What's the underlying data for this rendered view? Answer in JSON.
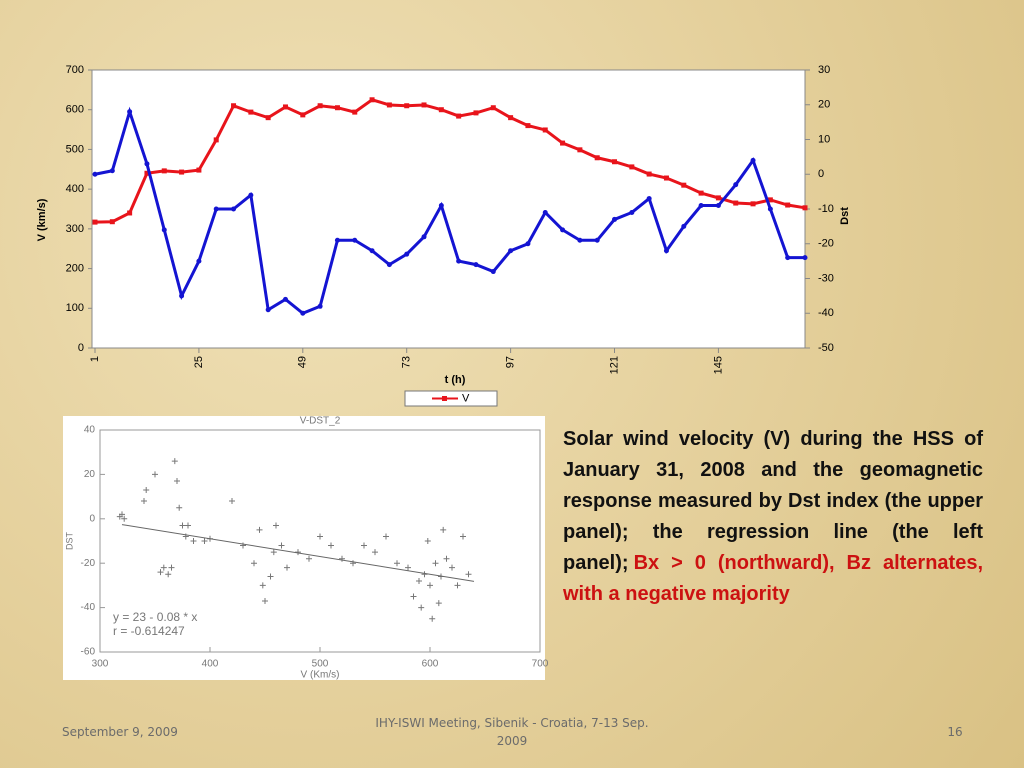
{
  "chart_data": [
    {
      "type": "line",
      "x_label": "t (h)",
      "y_label": "V (km/s)",
      "y2_label": "Dst",
      "x": [
        1,
        5,
        9,
        13,
        17,
        21,
        25,
        29,
        33,
        37,
        41,
        45,
        49,
        53,
        57,
        61,
        65,
        69,
        73,
        77,
        81,
        85,
        89,
        93,
        97,
        101,
        105,
        109,
        113,
        117,
        121,
        125,
        129,
        133,
        137,
        141,
        145,
        149,
        153,
        157,
        161,
        165
      ],
      "xlim": [
        1,
        165
      ],
      "xticks": [
        1,
        25,
        49,
        73,
        97,
        121,
        145
      ],
      "ylim": [
        0,
        700
      ],
      "yticks": [
        0,
        100,
        200,
        300,
        400,
        500,
        600,
        700
      ],
      "y2lim": [
        -50,
        30
      ],
      "y2ticks": [
        -50,
        -40,
        -30,
        -20,
        -10,
        0,
        10,
        20,
        30
      ],
      "legend": "bottom",
      "series": [
        {
          "name": "V",
          "color": "#e8141b",
          "values": [
            317,
            318,
            340,
            440,
            446,
            443,
            448,
            524,
            610,
            594,
            580,
            607,
            587,
            610,
            605,
            594,
            625,
            612,
            610,
            612,
            600,
            584,
            592,
            605,
            580,
            560,
            549,
            516,
            499,
            479,
            469,
            456,
            438,
            428,
            410,
            390,
            378,
            365,
            363,
            373,
            360,
            353
          ]
        },
        {
          "color": "#1414d2",
          "axis": "y2",
          "values": [
            0,
            1,
            18,
            3,
            -16,
            -35,
            -25,
            -10,
            -10,
            -6,
            -39,
            -36,
            -40,
            -38,
            -19,
            -19,
            -22,
            -26,
            -23,
            -18,
            -9,
            -25,
            -26,
            -28,
            -22,
            -20,
            -11,
            -16,
            -19,
            -19,
            -13,
            -11,
            -7,
            -22,
            -15,
            -9,
            -9,
            -3,
            4,
            -10,
            -24,
            -24
          ]
        }
      ]
    },
    {
      "type": "scatter",
      "title": "V-DST_2",
      "x_label": "V (Km/s)",
      "y_label": "DST",
      "annotations": [
        "y = 23 - 0.08 * x",
        "r = -0.614247"
      ],
      "x": [
        320,
        322,
        318,
        340,
        342,
        350,
        355,
        358,
        362,
        365,
        368,
        370,
        372,
        375,
        378,
        380,
        385,
        395,
        400,
        420,
        430,
        440,
        445,
        448,
        450,
        455,
        458,
        460,
        465,
        470,
        480,
        490,
        500,
        510,
        520,
        530,
        540,
        550,
        560,
        570,
        580,
        585,
        590,
        592,
        595,
        598,
        600,
        602,
        605,
        608,
        610,
        612,
        615,
        620,
        625,
        630,
        635
      ],
      "values": [
        2,
        0,
        1,
        8,
        13,
        20,
        -24,
        -22,
        -25,
        -22,
        26,
        17,
        5,
        -3,
        -8,
        -3,
        -10,
        -10,
        -9,
        8,
        -12,
        -20,
        -5,
        -30,
        -37,
        -26,
        -15,
        -3,
        -12,
        -22,
        -15,
        -18,
        -8,
        -12,
        -18,
        -20,
        -12,
        -15,
        -8,
        -20,
        -22,
        -35,
        -28,
        -40,
        -25,
        -10,
        -30,
        -45,
        -20,
        -38,
        -26,
        -5,
        -18,
        -22,
        -30,
        -8,
        -25
      ],
      "color": "#777777",
      "xlim": [
        300,
        700
      ],
      "xticks": [
        300,
        400,
        500,
        600,
        700
      ],
      "ylim": [
        -60,
        40
      ],
      "yticks": [
        -60,
        -40,
        -20,
        0,
        20,
        40
      ],
      "regression": {
        "x": [
          320,
          640
        ],
        "values": [
          -2.6,
          -28.2
        ]
      }
    }
  ],
  "description": {
    "text": "Solar wind velocity (V) during the HSS of January 31, 2008 and the geomagnetic response measured by Dst index (the upper panel); the regression line (the left panel);",
    "highlight": "Bx > 0 (northward), Bz alternates, with a negative majority"
  },
  "footer": {
    "date": "September 9, 2009",
    "event": "IHY-ISWI Meeting, Sibenik - Croatia, 7-13 Sep. 2009",
    "page": 16
  }
}
